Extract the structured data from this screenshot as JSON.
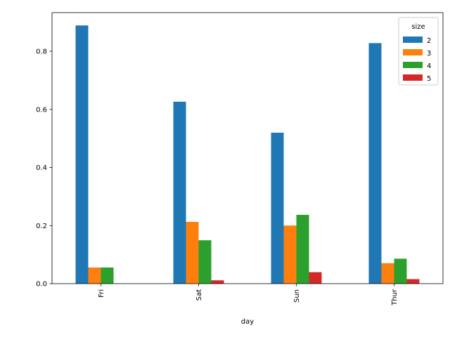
{
  "chart_data": {
    "type": "bar",
    "categories": [
      "Fri",
      "Sat",
      "Sun",
      "Thur"
    ],
    "series": [
      {
        "name": "2",
        "values": [
          0.8889,
          0.6264,
          0.5197,
          0.8281
        ],
        "color": "#1f77b4"
      },
      {
        "name": "3",
        "values": [
          0.0556,
          0.2126,
          0.2,
          0.0703
        ],
        "color": "#ff7f0e"
      },
      {
        "name": "4",
        "values": [
          0.0556,
          0.1494,
          0.2368,
          0.0859
        ],
        "color": "#2ca02c"
      },
      {
        "name": "5",
        "values": [
          0.0,
          0.0115,
          0.0395,
          0.0156
        ],
        "color": "#d62728"
      }
    ],
    "xlabel": "day",
    "ylabel": "",
    "ylim": [
      0,
      0.933
    ],
    "yticks": [
      0.0,
      0.2,
      0.4,
      0.6,
      0.8
    ],
    "ytick_labels": [
      "0.0",
      "0.2",
      "0.4",
      "0.6",
      "0.8"
    ],
    "legend": {
      "title": "size",
      "placement": "top-right"
    },
    "grid": false
  }
}
